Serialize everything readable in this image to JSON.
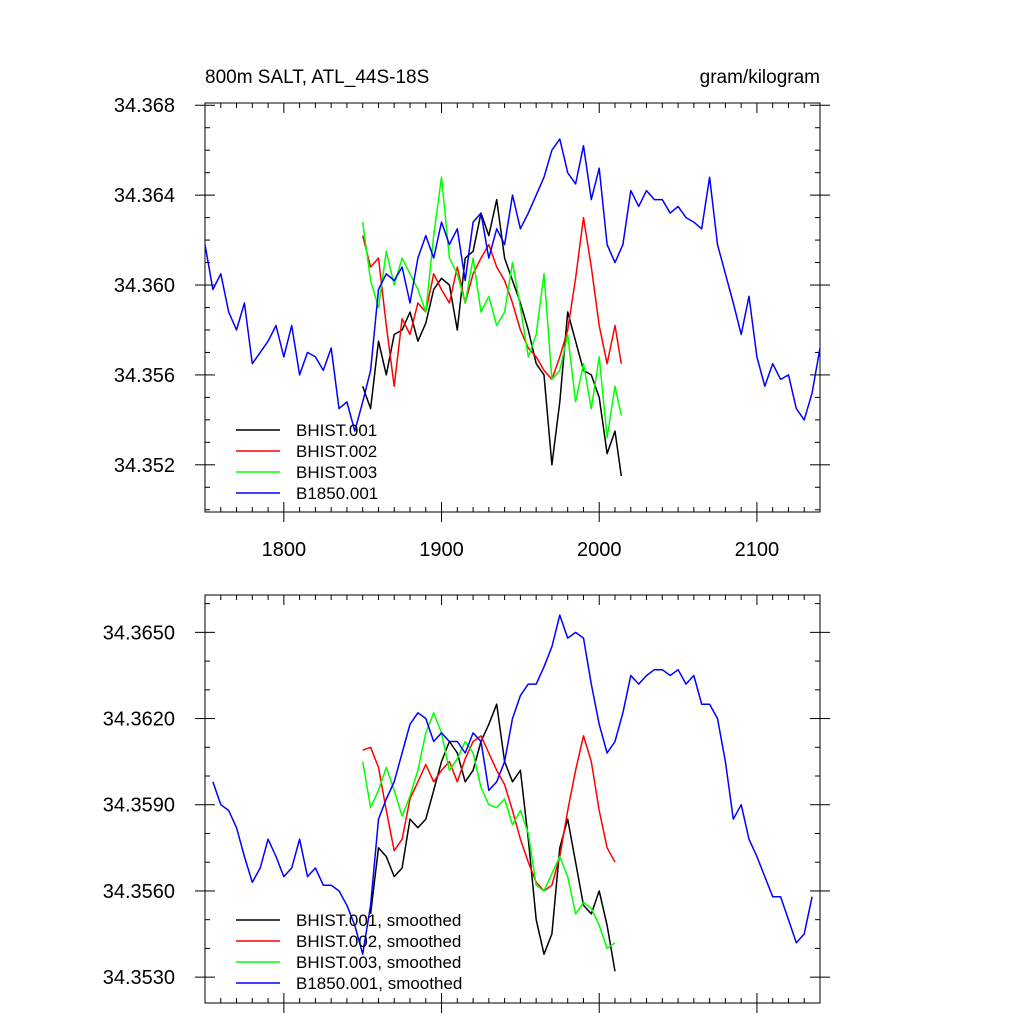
{
  "chart_data": [
    {
      "type": "line",
      "title_left": "800m SALT, ATL_44S-18S",
      "title_right": "gram/kilogram",
      "xlim": [
        1750,
        2140
      ],
      "ylim": [
        34.3499,
        34.3681
      ],
      "xticks": [
        1800,
        1900,
        2000,
        2100
      ],
      "xtick_labels": [
        "1800",
        "1900",
        "2000",
        "2100"
      ],
      "yticks": [
        34.352,
        34.356,
        34.36,
        34.364,
        34.368
      ],
      "ytick_labels": [
        "34.352",
        "34.356",
        "34.360",
        "34.364",
        "34.368"
      ],
      "legend_position": "bottom-left",
      "series": [
        {
          "name": "BHIST.001",
          "color": "#000000",
          "x": [
            1850,
            1855,
            1860,
            1865,
            1870,
            1875,
            1880,
            1885,
            1890,
            1895,
            1900,
            1905,
            1910,
            1915,
            1920,
            1925,
            1930,
            1935,
            1940,
            1945,
            1950,
            1955,
            1960,
            1965,
            1970,
            1975,
            1980,
            1985,
            1990,
            1995,
            2000,
            2005,
            2010,
            2014
          ],
          "y": [
            34.3555,
            34.3545,
            34.3575,
            34.356,
            34.3578,
            34.358,
            34.3588,
            34.3575,
            34.3583,
            34.3598,
            34.3603,
            34.36,
            34.358,
            34.3612,
            34.3615,
            34.3632,
            34.3622,
            34.3638,
            34.3612,
            34.3602,
            34.3592,
            34.358,
            34.3565,
            34.356,
            34.352,
            34.3548,
            34.3588,
            34.3575,
            34.3562,
            34.356,
            34.355,
            34.3525,
            34.3535,
            34.3515
          ]
        },
        {
          "name": "BHIST.002",
          "color": "#ff0000",
          "x": [
            1850,
            1855,
            1860,
            1865,
            1870,
            1875,
            1880,
            1885,
            1890,
            1895,
            1900,
            1905,
            1910,
            1915,
            1920,
            1925,
            1930,
            1935,
            1940,
            1945,
            1950,
            1955,
            1960,
            1965,
            1970,
            1975,
            1980,
            1985,
            1990,
            1995,
            2000,
            2005,
            2010,
            2014
          ],
          "y": [
            34.3622,
            34.3608,
            34.3612,
            34.3582,
            34.3555,
            34.3585,
            34.3578,
            34.3592,
            34.3588,
            34.3605,
            34.3598,
            34.3592,
            34.3608,
            34.3592,
            34.3605,
            34.3612,
            34.3618,
            34.3608,
            34.3602,
            34.3592,
            34.358,
            34.3572,
            34.3568,
            34.3562,
            34.3558,
            34.3568,
            34.358,
            34.3603,
            34.363,
            34.3608,
            34.3582,
            34.3565,
            34.3582,
            34.3565
          ]
        },
        {
          "name": "BHIST.003",
          "color": "#00ff00",
          "x": [
            1850,
            1855,
            1860,
            1865,
            1870,
            1875,
            1880,
            1885,
            1890,
            1895,
            1900,
            1905,
            1910,
            1915,
            1920,
            1925,
            1930,
            1935,
            1940,
            1945,
            1950,
            1955,
            1960,
            1965,
            1970,
            1975,
            1980,
            1985,
            1990,
            1995,
            2000,
            2005,
            2010,
            2014
          ],
          "y": [
            34.3628,
            34.3602,
            34.359,
            34.3615,
            34.36,
            34.3612,
            34.3605,
            34.3598,
            34.3588,
            34.3622,
            34.3648,
            34.3612,
            34.3605,
            34.3592,
            34.3612,
            34.3588,
            34.3595,
            34.3582,
            34.3588,
            34.361,
            34.359,
            34.3568,
            34.3578,
            34.3605,
            34.3558,
            34.3562,
            34.3578,
            34.3548,
            34.3565,
            34.3545,
            34.3568,
            34.3532,
            34.3555,
            34.3542
          ]
        },
        {
          "name": "B1850.001",
          "color": "#0000ff",
          "x": [
            1750,
            1755,
            1760,
            1765,
            1770,
            1775,
            1780,
            1785,
            1790,
            1795,
            1800,
            1805,
            1810,
            1815,
            1820,
            1825,
            1830,
            1835,
            1840,
            1845,
            1850,
            1855,
            1860,
            1865,
            1870,
            1875,
            1880,
            1885,
            1890,
            1895,
            1900,
            1905,
            1910,
            1915,
            1920,
            1925,
            1930,
            1935,
            1940,
            1945,
            1950,
            1955,
            1960,
            1965,
            1970,
            1975,
            1980,
            1985,
            1990,
            1995,
            2000,
            2005,
            2010,
            2015,
            2020,
            2025,
            2030,
            2035,
            2040,
            2045,
            2050,
            2055,
            2060,
            2065,
            2070,
            2075,
            2080,
            2085,
            2090,
            2095,
            2100,
            2105,
            2110,
            2115,
            2120,
            2125,
            2130,
            2135,
            2140
          ],
          "y": [
            34.3618,
            34.3598,
            34.3605,
            34.3588,
            34.358,
            34.3592,
            34.3565,
            34.357,
            34.3575,
            34.3582,
            34.3568,
            34.3582,
            34.356,
            34.357,
            34.3568,
            34.3562,
            34.3572,
            34.3545,
            34.3548,
            34.3535,
            34.3548,
            34.3562,
            34.3598,
            34.3605,
            34.3602,
            34.3608,
            34.3592,
            34.3612,
            34.3622,
            34.3612,
            34.3628,
            34.3618,
            34.3625,
            34.3602,
            34.3628,
            34.3632,
            34.3612,
            34.3625,
            34.3618,
            34.364,
            34.3625,
            34.3632,
            34.364,
            34.3648,
            34.366,
            34.3665,
            34.365,
            34.3645,
            34.3662,
            34.3638,
            34.3652,
            34.3618,
            34.361,
            34.3618,
            34.3642,
            34.3635,
            34.3642,
            34.3638,
            34.3638,
            34.3632,
            34.3635,
            34.363,
            34.3628,
            34.3625,
            34.3648,
            34.3618,
            34.3605,
            34.3592,
            34.3578,
            34.3595,
            34.3568,
            34.3555,
            34.3565,
            34.3558,
            34.356,
            34.3545,
            34.354,
            34.3552,
            34.3572
          ]
        }
      ]
    },
    {
      "type": "line",
      "xlim": [
        1750,
        2140
      ],
      "ylim": [
        34.3521,
        34.3663
      ],
      "xticks": [
        1800,
        1900,
        2000,
        2100
      ],
      "xtick_labels": [],
      "yticks": [
        34.353,
        34.356,
        34.359,
        34.362,
        34.365
      ],
      "ytick_labels": [
        "34.3530",
        "34.3560",
        "34.3590",
        "34.3620",
        "34.3650"
      ],
      "legend_position": "bottom-left",
      "series": [
        {
          "name": "BHIST.001, smoothed",
          "color": "#000000",
          "x": [
            1855,
            1860,
            1865,
            1870,
            1875,
            1880,
            1885,
            1890,
            1895,
            1900,
            1905,
            1910,
            1915,
            1920,
            1925,
            1930,
            1935,
            1940,
            1945,
            1950,
            1955,
            1960,
            1965,
            1970,
            1975,
            1980,
            1985,
            1990,
            1995,
            2000,
            2005,
            2010
          ],
          "y": [
            34.3552,
            34.3575,
            34.3572,
            34.3565,
            34.3568,
            34.3585,
            34.3582,
            34.3585,
            34.3595,
            34.3605,
            34.3612,
            34.3608,
            34.3598,
            34.3602,
            34.3612,
            34.3618,
            34.3625,
            34.3605,
            34.3598,
            34.3602,
            34.3578,
            34.355,
            34.3538,
            34.3545,
            34.3575,
            34.3585,
            34.357,
            34.3555,
            34.3552,
            34.356,
            34.3548,
            34.3532
          ]
        },
        {
          "name": "BHIST.002, smoothed",
          "color": "#ff0000",
          "x": [
            1850,
            1855,
            1860,
            1865,
            1870,
            1875,
            1880,
            1885,
            1890,
            1895,
            1900,
            1905,
            1910,
            1915,
            1920,
            1925,
            1930,
            1935,
            1940,
            1945,
            1950,
            1955,
            1960,
            1965,
            1970,
            1975,
            1980,
            1985,
            1990,
            1995,
            2000,
            2005,
            2010
          ],
          "y": [
            34.3609,
            34.361,
            34.3603,
            34.3588,
            34.3574,
            34.3578,
            34.3592,
            34.3598,
            34.3604,
            34.3598,
            34.3602,
            34.3605,
            34.3598,
            34.3606,
            34.3612,
            34.3614,
            34.3608,
            34.3602,
            34.3597,
            34.3588,
            34.3578,
            34.357,
            34.3563,
            34.356,
            34.3562,
            34.3572,
            34.3588,
            34.3602,
            34.3614,
            34.3605,
            34.3588,
            34.3575,
            34.357
          ]
        },
        {
          "name": "BHIST.003, smoothed",
          "color": "#00ff00",
          "x": [
            1850,
            1855,
            1860,
            1865,
            1870,
            1875,
            1880,
            1885,
            1890,
            1895,
            1900,
            1905,
            1910,
            1915,
            1920,
            1925,
            1930,
            1935,
            1940,
            1945,
            1950,
            1955,
            1960,
            1965,
            1970,
            1975,
            1980,
            1985,
            1990,
            1995,
            2000,
            2005,
            2010
          ],
          "y": [
            34.3605,
            34.3589,
            34.3595,
            34.3603,
            34.3595,
            34.3586,
            34.3593,
            34.3602,
            34.3615,
            34.3622,
            34.3615,
            34.3602,
            34.3606,
            34.3612,
            34.3608,
            34.3596,
            34.359,
            34.3589,
            34.3592,
            34.3583,
            34.3588,
            34.358,
            34.3562,
            34.356,
            34.3566,
            34.3572,
            34.3565,
            34.3552,
            34.3556,
            34.3554,
            34.3548,
            34.354,
            34.3542
          ]
        },
        {
          "name": "B1850.001, smoothed",
          "color": "#0000ff",
          "x": [
            1755,
            1760,
            1765,
            1770,
            1775,
            1780,
            1785,
            1790,
            1795,
            1800,
            1805,
            1810,
            1815,
            1820,
            1825,
            1830,
            1835,
            1840,
            1845,
            1850,
            1855,
            1860,
            1865,
            1870,
            1875,
            1880,
            1885,
            1890,
            1895,
            1900,
            1905,
            1910,
            1915,
            1920,
            1925,
            1930,
            1935,
            1940,
            1945,
            1950,
            1955,
            1960,
            1965,
            1970,
            1975,
            1980,
            1985,
            1990,
            1995,
            2000,
            2005,
            2010,
            2015,
            2020,
            2025,
            2030,
            2035,
            2040,
            2045,
            2050,
            2055,
            2060,
            2065,
            2070,
            2075,
            2080,
            2085,
            2090,
            2095,
            2100,
            2105,
            2110,
            2115,
            2120,
            2125,
            2130,
            2135
          ],
          "y": [
            34.3598,
            34.359,
            34.3588,
            34.3582,
            34.3572,
            34.3563,
            34.3568,
            34.3578,
            34.3572,
            34.3565,
            34.3568,
            34.3578,
            34.3565,
            34.3568,
            34.3562,
            34.3562,
            34.356,
            34.3555,
            34.3548,
            34.3538,
            34.3555,
            34.3585,
            34.3592,
            34.3598,
            34.3608,
            34.3618,
            34.3622,
            34.362,
            34.3612,
            34.3615,
            34.3612,
            34.3612,
            34.3608,
            34.3615,
            34.3612,
            34.3595,
            34.3598,
            34.3605,
            34.362,
            34.3628,
            34.3632,
            34.3632,
            34.3638,
            34.3645,
            34.3656,
            34.3648,
            34.365,
            34.3648,
            34.3632,
            34.3618,
            34.3608,
            34.3612,
            34.3622,
            34.3635,
            34.3632,
            34.3635,
            34.3637,
            34.3637,
            34.3635,
            34.3637,
            34.3632,
            34.3635,
            34.3625,
            34.3625,
            34.362,
            34.3605,
            34.3585,
            34.359,
            34.3578,
            34.3572,
            34.3565,
            34.3558,
            34.3558,
            34.355,
            34.3542,
            34.3545,
            34.3558
          ]
        }
      ]
    }
  ]
}
